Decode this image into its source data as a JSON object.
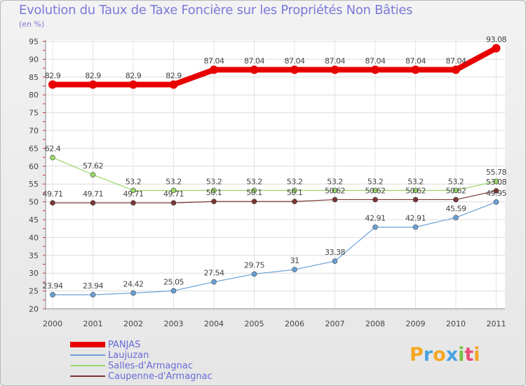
{
  "header": {
    "title": "Evolution du Taux de Taxe Foncière sur les Propriétés Non Bâties",
    "unit": "(en %)"
  },
  "chart_data": {
    "type": "line",
    "title": "Evolution du Taux de Taxe Foncière sur les Propriétés Non Bâties",
    "ylabel": "(en %)",
    "xlabel": "",
    "ylim": [
      20,
      95
    ],
    "yticks": [
      20,
      25,
      30,
      35,
      40,
      45,
      50,
      55,
      60,
      65,
      70,
      75,
      80,
      85,
      90,
      95
    ],
    "categories": [
      "2000",
      "2001",
      "2002",
      "2003",
      "2004",
      "2005",
      "2006",
      "2007",
      "2008",
      "2009",
      "2010",
      "2011"
    ],
    "grid": true,
    "legend_position": "bottom-left",
    "series": [
      {
        "name": "PANJAS",
        "color": "#e80000",
        "values": [
          82.9,
          82.9,
          82.9,
          82.9,
          87.04,
          87.04,
          87.04,
          87.04,
          87.04,
          87.04,
          87.04,
          93.08
        ],
        "labels": [
          "82.9",
          "82.9",
          "82.9",
          "82.9",
          "87.04",
          "87.04",
          "87.04",
          "87.04",
          "87.04",
          "87.04",
          "87.04",
          "93.08"
        ]
      },
      {
        "name": "Laujuzan",
        "color": "#6a9fd6",
        "values": [
          23.94,
          23.94,
          24.42,
          25.05,
          27.54,
          29.75,
          31,
          33.38,
          42.91,
          42.91,
          45.59,
          49.95
        ],
        "labels": [
          "23.94",
          "23.94",
          "24.42",
          "25.05",
          "27.54",
          "29.75",
          "31",
          "33.38",
          "42.91",
          "42.91",
          "45.59",
          "49.95"
        ]
      },
      {
        "name": "Salles-d'Armagnac",
        "color": "#9bd96a",
        "values": [
          62.4,
          57.62,
          53.2,
          53.2,
          53.2,
          53.2,
          53.2,
          53.2,
          53.2,
          53.2,
          53.2,
          55.78
        ],
        "labels": [
          "62.4",
          "57.62",
          "53.2",
          "53.2",
          "53.2",
          "53.2",
          "53.2",
          "53.2",
          "53.2",
          "53.2",
          "53.2",
          "55.78"
        ]
      },
      {
        "name": "Caupenne-d'Armagnac",
        "color": "#7a3535",
        "values": [
          49.71,
          49.71,
          49.71,
          49.71,
          50.1,
          50.1,
          50.1,
          50.62,
          50.62,
          50.62,
          50.62,
          53.08
        ],
        "labels": [
          "49.71",
          "49.71",
          "49.71",
          "49.71",
          "50.1",
          "50.1",
          "50.1",
          "50.62",
          "50.62",
          "50.62",
          "50.62",
          "53.08"
        ]
      }
    ]
  },
  "logo": {
    "text": "Proxiti",
    "letters": [
      {
        "char": "P",
        "color": "#f5a623"
      },
      {
        "char": "r",
        "color": "#4aa3df"
      },
      {
        "char": "o",
        "color": "#f5a623"
      },
      {
        "char": "x",
        "color": "#4aa3df"
      },
      {
        "char": "i",
        "color": "#7ac143"
      },
      {
        "char": "t",
        "color": "#e94e77"
      },
      {
        "char": "i",
        "color": "#f5a623"
      }
    ]
  }
}
